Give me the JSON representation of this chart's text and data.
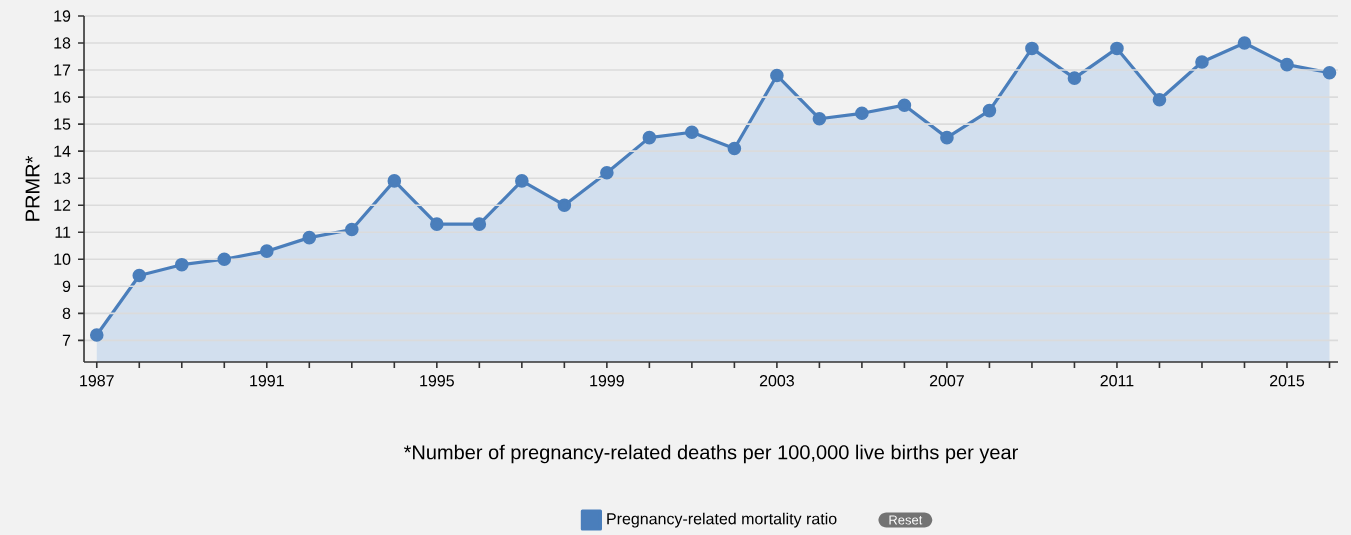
{
  "chart_data": {
    "type": "area",
    "ylabel": "PRMR*",
    "xlabel": "*Number of pregnancy-related deaths per 100,000 live births per year",
    "x": [
      1987,
      1988,
      1989,
      1990,
      1991,
      1992,
      1993,
      1994,
      1995,
      1996,
      1997,
      1998,
      1999,
      2000,
      2001,
      2002,
      2003,
      2004,
      2005,
      2006,
      2007,
      2008,
      2009,
      2010,
      2011,
      2012,
      2013,
      2014,
      2015,
      2016
    ],
    "series": [
      {
        "name": "Pregnancy-related mortality ratio",
        "color": "#4a7ebb",
        "values": [
          7.2,
          9.4,
          9.8,
          10.0,
          10.3,
          10.8,
          11.1,
          12.9,
          11.3,
          11.3,
          12.9,
          12.0,
          13.2,
          14.5,
          14.7,
          14.1,
          16.8,
          15.2,
          15.4,
          15.7,
          14.5,
          15.5,
          17.8,
          16.7,
          17.8,
          15.9,
          17.3,
          18.0,
          17.2,
          16.9
        ]
      }
    ],
    "xlim": [
      1986.7,
      2016.2
    ],
    "xticks": [
      1987,
      {
        "value": 1988,
        "label": null
      },
      {
        "value": 1989,
        "label": null
      },
      {
        "value": 1990,
        "label": null
      },
      1991,
      {
        "value": 1992,
        "label": null
      },
      {
        "value": 1993,
        "label": null
      },
      {
        "value": 1994,
        "label": null
      },
      1995,
      {
        "value": 1996,
        "label": null
      },
      {
        "value": 1997,
        "label": null
      },
      {
        "value": 1998,
        "label": null
      },
      1999,
      {
        "value": 2000,
        "label": null
      },
      {
        "value": 2001,
        "label": null
      },
      {
        "value": 2002,
        "label": null
      },
      2003,
      {
        "value": 2004,
        "label": null
      },
      {
        "value": 2005,
        "label": null
      },
      {
        "value": 2006,
        "label": null
      },
      2007,
      {
        "value": 2008,
        "label": null
      },
      {
        "value": 2009,
        "label": null
      },
      {
        "value": 2010,
        "label": null
      },
      2011,
      {
        "value": 2012,
        "label": null
      },
      {
        "value": 2013,
        "label": null
      },
      {
        "value": 2014,
        "label": null
      },
      2015,
      {
        "value": 2016,
        "label": null
      }
    ],
    "ylim": [
      6.2,
      19
    ],
    "yticks": [
      7,
      8,
      9,
      10,
      11,
      12,
      13,
      14,
      15,
      16,
      17,
      18,
      19
    ],
    "grid": "y",
    "marker": "circle",
    "legend": "bottom",
    "annotations": [
      "Reset"
    ]
  }
}
